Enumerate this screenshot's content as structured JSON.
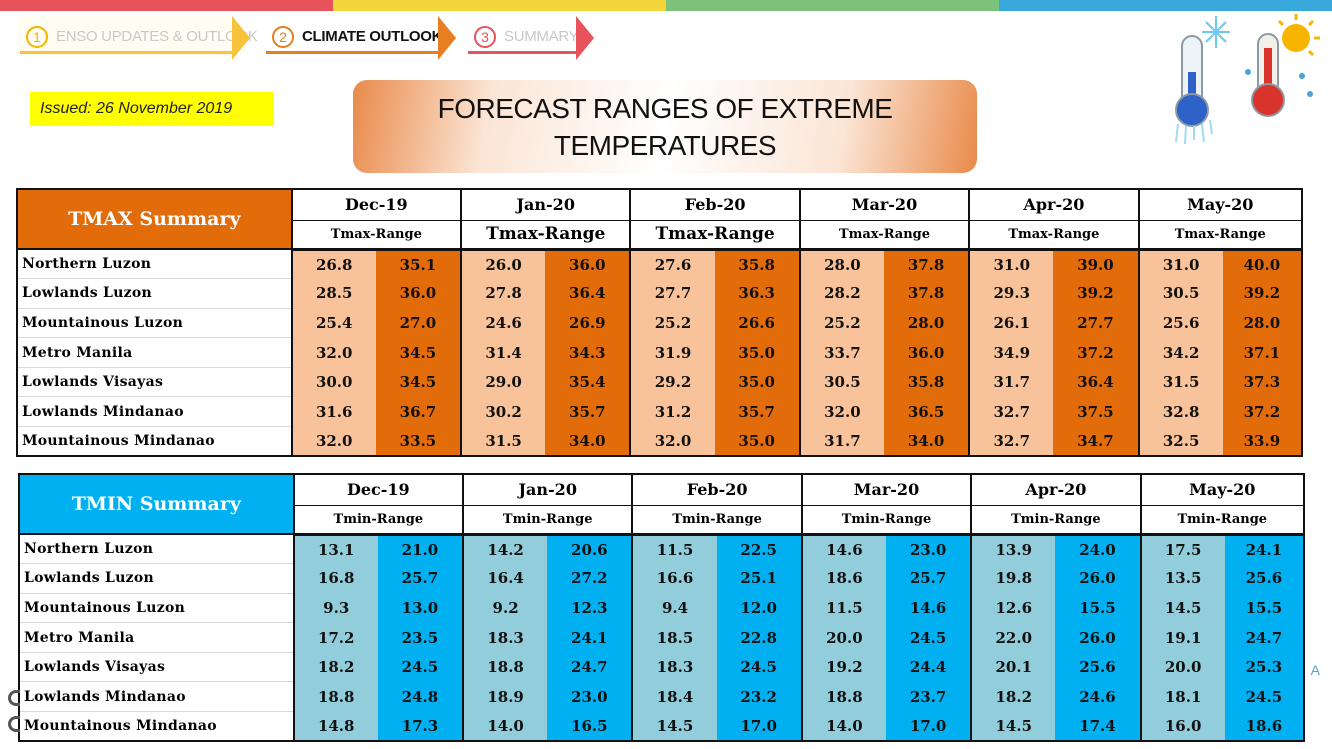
{
  "header": {
    "steps": [
      {
        "num": "1",
        "label": "ENSO UPDATES & OUTLOOK",
        "active": false
      },
      {
        "num": "2",
        "label": "CLIMATE OUTLOOK",
        "active": true
      },
      {
        "num": "3",
        "label": "SUMMARY",
        "active": false
      }
    ],
    "issued": "Issued: 26 November 2019",
    "title_line1": "FORECAST RANGES OF EXTREME",
    "title_line2": "TEMPERATURES"
  },
  "colors": {
    "tmax_dark": "#e36c0a",
    "tmax_light": "#f8c39a",
    "tmin_dark": "#00b0f0",
    "tmin_light": "#92cddc",
    "issued_bg": "#ffff00"
  },
  "icons": [
    "cold-thermometer-icon",
    "hot-thermometer-icon"
  ],
  "months": [
    "Dec-19",
    "Jan-20",
    "Feb-20",
    "Mar-20",
    "Apr-20",
    "May-20"
  ],
  "tmax": {
    "title": "TMAX Summary",
    "range_label": "Tmax-Range",
    "rows": [
      {
        "region": "Northern Luzon",
        "values": [
          "26.8",
          "35.1",
          "26.0",
          "36.0",
          "27.6",
          "35.8",
          "28.0",
          "37.8",
          "31.0",
          "39.0",
          "31.0",
          "40.0"
        ]
      },
      {
        "region": "Lowlands Luzon",
        "values": [
          "28.5",
          "36.0",
          "27.8",
          "36.4",
          "27.7",
          "36.3",
          "28.2",
          "37.8",
          "29.3",
          "39.2",
          "30.5",
          "39.2"
        ]
      },
      {
        "region": "Mountainous Luzon",
        "values": [
          "25.4",
          "27.0",
          "24.6",
          "26.9",
          "25.2",
          "26.6",
          "25.2",
          "28.0",
          "26.1",
          "27.7",
          "25.6",
          "28.0"
        ]
      },
      {
        "region": "Metro Manila",
        "values": [
          "32.0",
          "34.5",
          "31.4",
          "34.3",
          "31.9",
          "35.0",
          "33.7",
          "36.0",
          "34.9",
          "37.2",
          "34.2",
          "37.1"
        ]
      },
      {
        "region": "Lowlands Visayas",
        "values": [
          "30.0",
          "34.5",
          "29.0",
          "35.4",
          "29.2",
          "35.0",
          "30.5",
          "35.8",
          "31.7",
          "36.4",
          "31.5",
          "37.3"
        ]
      },
      {
        "region": "Lowlands Mindanao",
        "values": [
          "31.6",
          "36.7",
          "30.2",
          "35.7",
          "31.2",
          "35.7",
          "32.0",
          "36.5",
          "32.7",
          "37.5",
          "32.8",
          "37.2"
        ]
      },
      {
        "region": "Mountainous Mindanao",
        "values": [
          "32.0",
          "33.5",
          "31.5",
          "34.0",
          "32.0",
          "35.0",
          "31.7",
          "34.0",
          "32.7",
          "34.7",
          "32.5",
          "33.9"
        ]
      }
    ]
  },
  "tmin": {
    "title": "TMIN Summary",
    "range_label": "Tmin-Range",
    "rows": [
      {
        "region": "Northern Luzon",
        "values": [
          "13.1",
          "21.0",
          "14.2",
          "20.6",
          "11.5",
          "22.5",
          "14.6",
          "23.0",
          "13.9",
          "24.0",
          "17.5",
          "24.1"
        ]
      },
      {
        "region": "Lowlands Luzon",
        "values": [
          "16.8",
          "25.7",
          "16.4",
          "27.2",
          "16.6",
          "25.1",
          "18.6",
          "25.7",
          "19.8",
          "26.0",
          "13.5",
          "25.6"
        ]
      },
      {
        "region": "Mountainous Luzon",
        "values": [
          "9.3",
          "13.0",
          "9.2",
          "12.3",
          "9.4",
          "12.0",
          "11.5",
          "14.6",
          "12.6",
          "15.5",
          "14.5",
          "15.5"
        ]
      },
      {
        "region": "Metro Manila",
        "values": [
          "17.2",
          "23.5",
          "18.3",
          "24.1",
          "18.5",
          "22.8",
          "20.0",
          "24.5",
          "22.0",
          "26.0",
          "19.1",
          "24.7"
        ]
      },
      {
        "region": "Lowlands Visayas",
        "values": [
          "18.2",
          "24.5",
          "18.8",
          "24.7",
          "18.3",
          "24.5",
          "19.2",
          "24.4",
          "20.1",
          "25.6",
          "20.0",
          "25.3"
        ]
      },
      {
        "region": "Lowlands Mindanao",
        "values": [
          "18.8",
          "24.8",
          "18.9",
          "23.0",
          "18.4",
          "23.2",
          "18.8",
          "23.7",
          "18.2",
          "24.6",
          "18.1",
          "24.5"
        ]
      },
      {
        "region": "Mountainous Mindanao",
        "values": [
          "14.8",
          "17.3",
          "14.0",
          "16.5",
          "14.5",
          "17.0",
          "14.0",
          "17.0",
          "14.5",
          "17.4",
          "16.0",
          "18.6"
        ]
      }
    ]
  },
  "footer_fragment": "A"
}
